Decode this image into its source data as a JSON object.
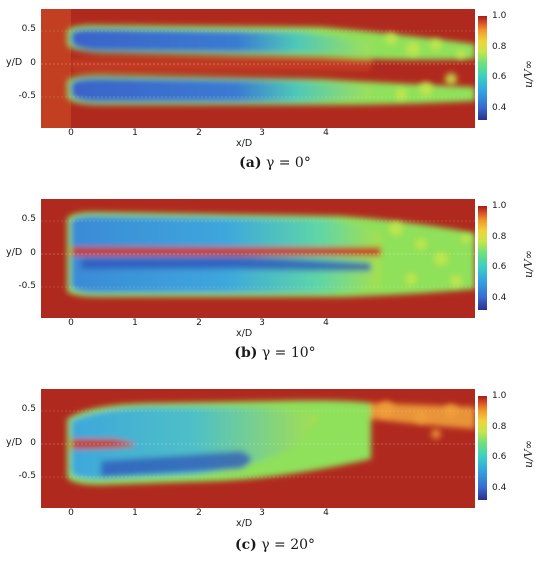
{
  "axes": {
    "y_label": "y/D",
    "x_label": "x/D",
    "y_ticks": [
      "0.5",
      "0",
      "-0.5"
    ],
    "x_ticks": [
      "0",
      "1",
      "2",
      "3",
      "4"
    ],
    "colorbar_label": "u/V∞",
    "colorbar_ticks": [
      "1.0",
      "0.8",
      "0.6",
      "0.4"
    ]
  },
  "panels": [
    {
      "tag_open": "(",
      "tag": "a",
      "tag_close": ")",
      "caption": "γ = 0°"
    },
    {
      "tag_open": "(",
      "tag": "b",
      "tag_close": ")",
      "caption": "γ = 10°"
    },
    {
      "tag_open": "(",
      "tag": "c",
      "tag_close": ")",
      "caption": "γ = 20°"
    }
  ],
  "colors": {
    "freestream": "#b0291e",
    "wake_core": "#3a63c9",
    "wake_edge": "#42c9d4",
    "shear_layer": "#8fe05a"
  }
}
